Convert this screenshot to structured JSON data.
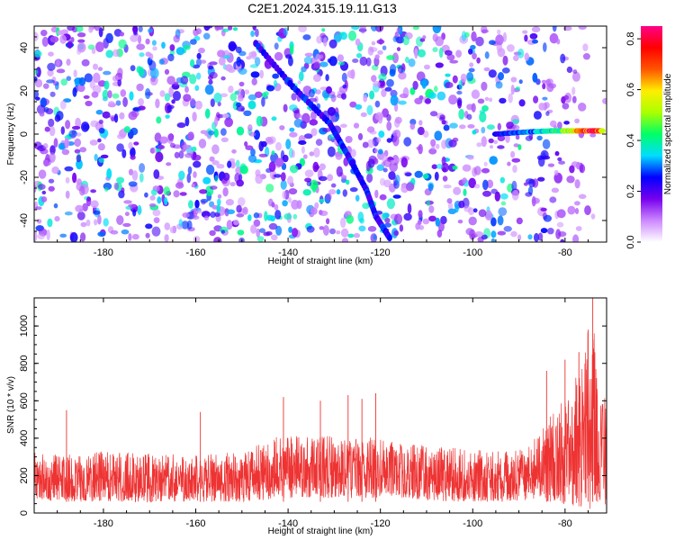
{
  "figure_title": "C2E1.2024.315.19.11.G13",
  "colors": {
    "snr_line": "#ee3333",
    "frame": "#000000"
  },
  "chart_data": [
    {
      "type": "heatmap",
      "title": "",
      "xlabel": "Height of straight line (km)",
      "ylabel": "Frequency (Hz)",
      "xlim": [
        -195,
        -71
      ],
      "ylim": [
        -50,
        50
      ],
      "x_ticks": [
        -180,
        -160,
        -140,
        -120,
        -100,
        -80
      ],
      "y_ticks": [
        -40,
        -20,
        0,
        20,
        40
      ],
      "colorbar": {
        "label": "Normalized spectral amplitude",
        "range": [
          0,
          0.85
        ],
        "ticks": [
          0.0,
          0.2,
          0.4,
          0.6,
          0.8
        ],
        "colormap": [
          "#ffffff",
          "#cc88ff",
          "#7700ee",
          "#0000ff",
          "#00ddff",
          "#00ff66",
          "#aaff00",
          "#ffee00",
          "#ff5500",
          "#ff0000",
          "#ff0088"
        ]
      },
      "features": [
        {
          "name": "diagonal trace",
          "x": [
            -147,
            -139,
            -131,
            -127,
            -123,
            -121,
            -118
          ],
          "y": [
            42,
            22,
            5,
            -10,
            -26,
            -38,
            -48
          ],
          "amplitude": 0.25
        },
        {
          "name": "horizontal trace",
          "x": [
            -95,
            -88,
            -83,
            -80,
            -77,
            -74,
            -72
          ],
          "y": [
            0,
            1,
            1.5,
            1.5,
            1.5,
            1.5,
            1.5
          ],
          "amplitude": [
            0.25,
            0.3,
            0.4,
            0.5,
            0.65,
            0.8,
            0.7
          ]
        }
      ]
    },
    {
      "type": "line",
      "title": "",
      "xlabel": "Height of straight line (km)",
      "ylabel": "SNR (10 * v/v)",
      "xlim": [
        -195,
        -71
      ],
      "ylim": [
        0,
        1150
      ],
      "x_ticks": [
        -180,
        -160,
        -140,
        -120,
        -100,
        -80
      ],
      "y_ticks": [
        0,
        200,
        400,
        600,
        800,
        1000
      ],
      "envelope": {
        "x": [
          -195,
          -190,
          -180,
          -170,
          -160,
          -150,
          -145,
          -140,
          -135,
          -130,
          -125,
          -120,
          -115,
          -110,
          -105,
          -100,
          -95,
          -90,
          -86,
          -84,
          -82,
          -80,
          -78,
          -76,
          -75,
          -74,
          -73,
          -71
        ],
        "upper": [
          340,
          320,
          330,
          320,
          310,
          330,
          380,
          440,
          400,
          420,
          410,
          400,
          380,
          360,
          350,
          340,
          330,
          340,
          420,
          520,
          560,
          620,
          700,
          850,
          1000,
          1150,
          700,
          600
        ],
        "lower": [
          80,
          60,
          60,
          60,
          60,
          60,
          70,
          80,
          80,
          80,
          80,
          80,
          80,
          70,
          60,
          60,
          60,
          60,
          80,
          60,
          60,
          40,
          40,
          30,
          20,
          20,
          30,
          40
        ]
      },
      "peaks": [
        {
          "x": -188,
          "y": 550
        },
        {
          "x": -159,
          "y": 540
        },
        {
          "x": -141,
          "y": 620
        },
        {
          "x": -133,
          "y": 600
        },
        {
          "x": -127,
          "y": 630
        },
        {
          "x": -124,
          "y": 610
        },
        {
          "x": -121,
          "y": 640
        },
        {
          "x": -84,
          "y": 760
        },
        {
          "x": -80,
          "y": 820
        },
        {
          "x": -77,
          "y": 860
        },
        {
          "x": -75,
          "y": 980
        },
        {
          "x": -74,
          "y": 1150
        }
      ]
    }
  ]
}
